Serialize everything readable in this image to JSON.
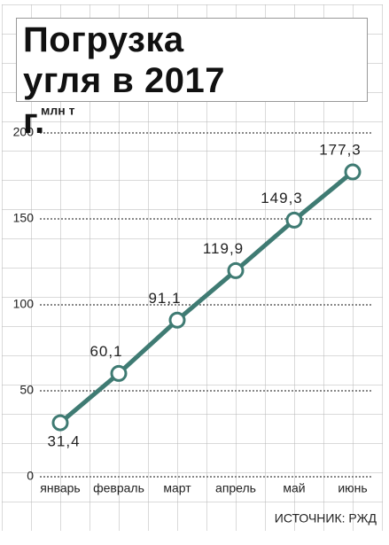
{
  "chart_data": {
    "type": "line",
    "title": "Погрузка угля в 2017 г.",
    "y_label": "млн т",
    "categories": [
      "январь",
      "февраль",
      "март",
      "апрель",
      "май",
      "июнь"
    ],
    "values": [
      31.4,
      60.1,
      91.1,
      119.9,
      149.3,
      177.3
    ],
    "value_labels": [
      "31,4",
      "60,1",
      "91,1",
      "119,9",
      "149,3",
      "177,3"
    ],
    "color": "#3f7b73",
    "ylim": [
      0,
      200
    ],
    "yticks": [
      0,
      50,
      100,
      150,
      200
    ],
    "grid": true,
    "source": "ИСТОЧНИК: РЖД"
  }
}
